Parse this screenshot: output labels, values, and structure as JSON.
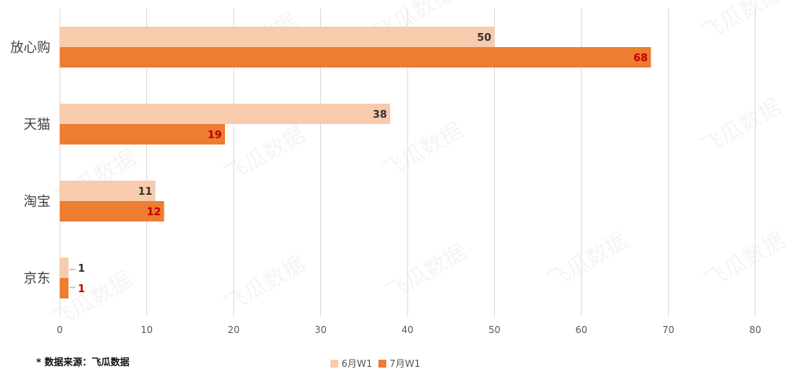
{
  "watermark": "飞瓜数据",
  "footnote": "* 数据来源：飞瓜数据",
  "colors": {
    "jun": "#F7CBAC",
    "jul": "#ED7D31",
    "label_jun": "#333333",
    "label_jul": "#C00000",
    "grid": "#D9D9D9"
  },
  "chart_data": {
    "type": "bar",
    "orientation": "horizontal",
    "categories": [
      "放心购",
      "天猫",
      "淘宝",
      "京东"
    ],
    "series": [
      {
        "name": "6月W1",
        "values": [
          50,
          38,
          11,
          1
        ]
      },
      {
        "name": "7月W1",
        "values": [
          68,
          19,
          12,
          1
        ]
      }
    ],
    "xlim": [
      0,
      80
    ],
    "xticks": [
      "0",
      "10",
      "20",
      "30",
      "40",
      "50",
      "60",
      "70",
      "80"
    ],
    "grid": true,
    "legend_position": "bottom"
  }
}
